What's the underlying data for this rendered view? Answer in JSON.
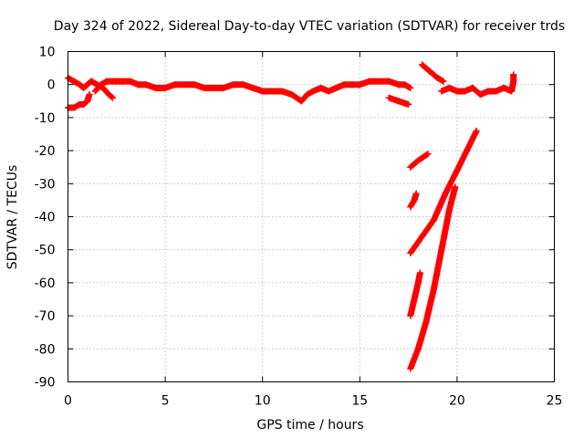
{
  "chart_data": {
    "type": "scatter",
    "title": "Day 324 of 2022, Sidereal Day-to-day VTEC variation (SDTVAR) for receiver trds",
    "xlabel": "GPS time / hours",
    "ylabel": "SDTVAR / TECUs",
    "xlim": [
      0,
      25
    ],
    "ylim": [
      -90,
      10
    ],
    "xticks": [
      "0",
      "5",
      "10",
      "15",
      "20",
      "25"
    ],
    "yticks": [
      "10",
      "0",
      "-10",
      "-20",
      "-30",
      "-40",
      "-50",
      "-60",
      "-70",
      "-80",
      "-90"
    ],
    "grid": true,
    "marker": "plus",
    "color": "#ff0000",
    "series": [
      {
        "segments": [
          [
            [
              0.0,
              -7
            ],
            [
              0.3,
              -7
            ],
            [
              0.6,
              -6
            ],
            [
              0.8,
              -6
            ],
            [
              1.0,
              -5
            ],
            [
              1.1,
              -3
            ]
          ],
          [
            [
              0.0,
              2
            ],
            [
              0.3,
              1
            ],
            [
              0.6,
              0
            ],
            [
              0.8,
              -1
            ],
            [
              1.0,
              0
            ],
            [
              1.2,
              1
            ],
            [
              1.5,
              0
            ],
            [
              1.8,
              -1
            ],
            [
              2.1,
              -3
            ],
            [
              2.3,
              -4
            ]
          ],
          [
            [
              1.4,
              -2
            ],
            [
              1.7,
              0
            ],
            [
              2.0,
              1
            ],
            [
              2.4,
              1
            ],
            [
              2.8,
              1
            ],
            [
              3.2,
              1
            ],
            [
              3.6,
              0
            ],
            [
              4.0,
              0
            ],
            [
              4.5,
              -1
            ],
            [
              5.0,
              -1
            ],
            [
              5.5,
              0
            ],
            [
              6.0,
              0
            ],
            [
              6.5,
              0
            ],
            [
              7.0,
              -1
            ],
            [
              7.5,
              -1
            ],
            [
              8.0,
              -1
            ],
            [
              8.5,
              0
            ],
            [
              9.0,
              0
            ],
            [
              9.5,
              -1
            ],
            [
              10.0,
              -2
            ],
            [
              10.5,
              -2
            ],
            [
              11.0,
              -2
            ],
            [
              11.5,
              -3
            ],
            [
              12.0,
              -5
            ],
            [
              12.3,
              -3
            ],
            [
              12.6,
              -2
            ],
            [
              13.0,
              -1
            ],
            [
              13.4,
              -2
            ],
            [
              13.8,
              -1
            ],
            [
              14.2,
              0
            ],
            [
              14.6,
              0
            ],
            [
              15.0,
              0
            ],
            [
              15.5,
              1
            ],
            [
              16.0,
              1
            ],
            [
              16.5,
              1
            ],
            [
              17.0,
              0
            ],
            [
              17.3,
              0
            ],
            [
              17.6,
              -1
            ]
          ],
          [
            [
              16.5,
              -4
            ],
            [
              17.0,
              -5
            ],
            [
              17.5,
              -6
            ]
          ],
          [
            [
              18.2,
              6
            ],
            [
              18.6,
              4
            ],
            [
              19.0,
              2
            ],
            [
              19.3,
              1
            ]
          ],
          [
            [
              19.2,
              -2
            ],
            [
              19.6,
              -1
            ],
            [
              20.0,
              -2
            ],
            [
              20.4,
              -2
            ],
            [
              20.8,
              -1
            ],
            [
              21.2,
              -3
            ],
            [
              21.6,
              -2
            ],
            [
              22.0,
              -2
            ],
            [
              22.4,
              -1
            ],
            [
              22.8,
              -2
            ],
            [
              22.9,
              1
            ],
            [
              22.9,
              3
            ]
          ]
        ]
      },
      {
        "segments": [
          [
            [
              17.6,
              -25
            ],
            [
              18.0,
              -23
            ],
            [
              18.5,
              -21
            ]
          ],
          [
            [
              17.6,
              -37
            ],
            [
              17.8,
              -35
            ],
            [
              17.9,
              -33
            ]
          ],
          [
            [
              17.6,
              -51
            ],
            [
              18.2,
              -46
            ],
            [
              18.8,
              -41
            ],
            [
              19.4,
              -33
            ],
            [
              20.0,
              -26
            ],
            [
              20.5,
              -20
            ],
            [
              21.0,
              -14
            ]
          ],
          [
            [
              17.6,
              -70
            ],
            [
              17.8,
              -65
            ],
            [
              18.0,
              -60
            ],
            [
              18.1,
              -57
            ]
          ],
          [
            [
              17.6,
              -86
            ],
            [
              18.0,
              -80
            ],
            [
              18.4,
              -72
            ],
            [
              18.8,
              -62
            ],
            [
              19.2,
              -50
            ],
            [
              19.6,
              -38
            ],
            [
              19.9,
              -31
            ]
          ]
        ]
      }
    ]
  }
}
